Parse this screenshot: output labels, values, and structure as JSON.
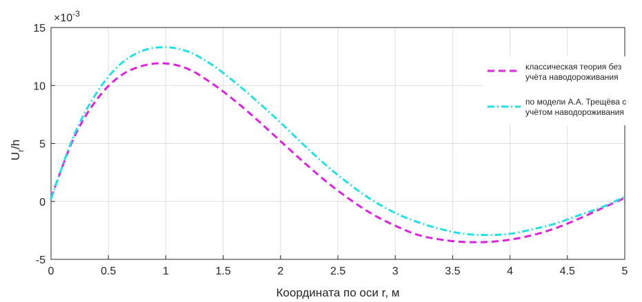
{
  "chart_data": {
    "type": "line",
    "title": "",
    "xlabel": "Координата по оси r, м",
    "ylabel_main": "U",
    "ylabel_sub": "r",
    "ylabel_tail": "/h",
    "exponent_label": "×10",
    "exponent_power": "-3",
    "xlim": [
      0,
      5
    ],
    "ylim": [
      -5,
      15
    ],
    "xticks": [
      "0",
      "0.5",
      "1",
      "1.5",
      "2",
      "2.5",
      "3",
      "3.5",
      "4",
      "4.5",
      "5"
    ],
    "yticks": [
      "-5",
      "0",
      "5",
      "10",
      "15"
    ],
    "grid": true,
    "legend_position": "right",
    "series": [
      {
        "name_line1": "классическая теория без",
        "name_line2": "учёта наводороживания",
        "color": "#e020e0",
        "dash": "dashed",
        "x": [
          0,
          0.2,
          0.4,
          0.6,
          0.8,
          1.0,
          1.2,
          1.4,
          1.6,
          1.8,
          2.0,
          2.2,
          2.4,
          2.6,
          2.8,
          3.0,
          3.2,
          3.4,
          3.6,
          3.8,
          4.0,
          4.2,
          4.4,
          4.6,
          4.8,
          5.0
        ],
        "y": [
          0.3,
          5.5,
          8.8,
          10.8,
          11.7,
          11.9,
          11.4,
          10.2,
          8.7,
          7.0,
          5.2,
          3.4,
          1.7,
          0.2,
          -1.1,
          -2.1,
          -2.9,
          -3.3,
          -3.5,
          -3.5,
          -3.3,
          -2.9,
          -2.3,
          -1.5,
          -0.6,
          0.3
        ]
      },
      {
        "name_line1": "по модели А.А. Трещёва с",
        "name_line2": "учётом наводороживания",
        "color": "#20e0e8",
        "dash": "dashdot",
        "x": [
          0,
          0.2,
          0.4,
          0.6,
          0.8,
          1.0,
          1.2,
          1.4,
          1.6,
          1.8,
          2.0,
          2.2,
          2.4,
          2.6,
          2.8,
          3.0,
          3.2,
          3.4,
          3.6,
          3.8,
          4.0,
          4.2,
          4.4,
          4.6,
          4.8,
          5.0
        ],
        "y": [
          0.2,
          5.7,
          9.4,
          11.8,
          13.0,
          13.3,
          12.9,
          11.8,
          10.3,
          8.6,
          6.8,
          4.9,
          3.1,
          1.5,
          0.1,
          -1.0,
          -1.8,
          -2.4,
          -2.8,
          -2.9,
          -2.8,
          -2.4,
          -1.9,
          -1.2,
          -0.5,
          0.4
        ]
      }
    ]
  }
}
